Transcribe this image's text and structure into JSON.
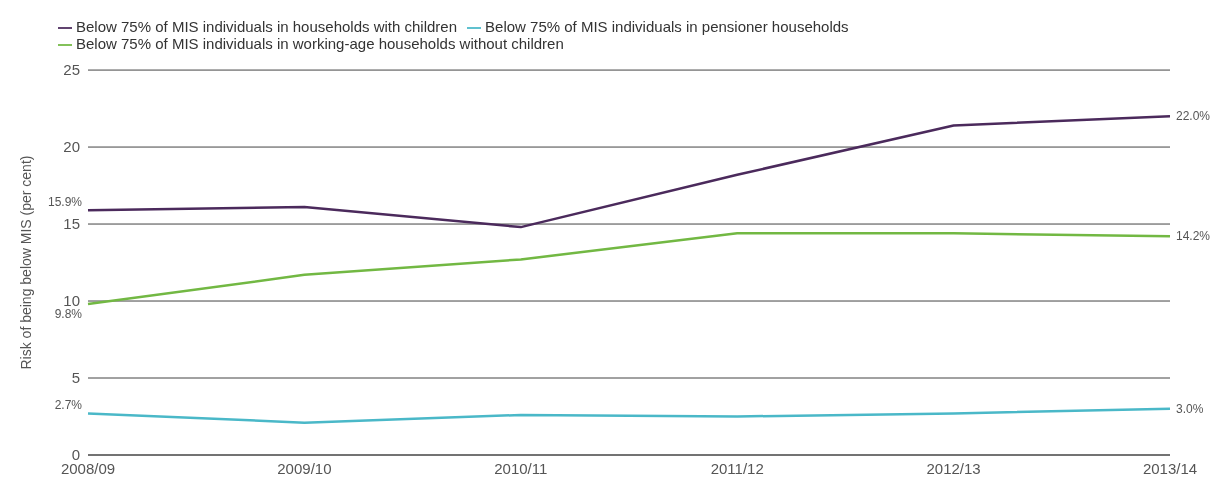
{
  "chart_data": {
    "type": "line",
    "ylabel": "Risk of being below MIS (per cent)",
    "categories": [
      "2008/09",
      "2009/10",
      "2010/11",
      "2011/12",
      "2012/13",
      "2013/14"
    ],
    "series": [
      {
        "name": "Below 75% of MIS individuals in households with children",
        "color": "#4b2a5c",
        "values": [
          15.9,
          16.1,
          14.8,
          18.2,
          21.4,
          22.0
        ],
        "value_labels": [
          "15.9%",
          null,
          null,
          null,
          null,
          "22.0%"
        ]
      },
      {
        "name": "Below 75% of MIS individuals in working-age households without children",
        "color": "#72b843",
        "values": [
          9.8,
          11.7,
          12.7,
          14.4,
          14.4,
          14.2
        ],
        "value_labels": [
          "9.8%",
          null,
          null,
          null,
          null,
          "14.2%"
        ]
      },
      {
        "name": "Below 75% of MIS individuals in pensioner households",
        "color": "#4ab8c8",
        "values": [
          2.7,
          2.1,
          2.6,
          2.5,
          2.7,
          3.0
        ],
        "value_labels": [
          "2.7%",
          null,
          null,
          null,
          null,
          "3.0%"
        ]
      }
    ],
    "ylim": [
      0,
      25
    ],
    "yticks": [
      0,
      5,
      10,
      15,
      20,
      25
    ],
    "grid": "y",
    "legend": "top left",
    "marker": "none",
    "line_style": "solid"
  }
}
